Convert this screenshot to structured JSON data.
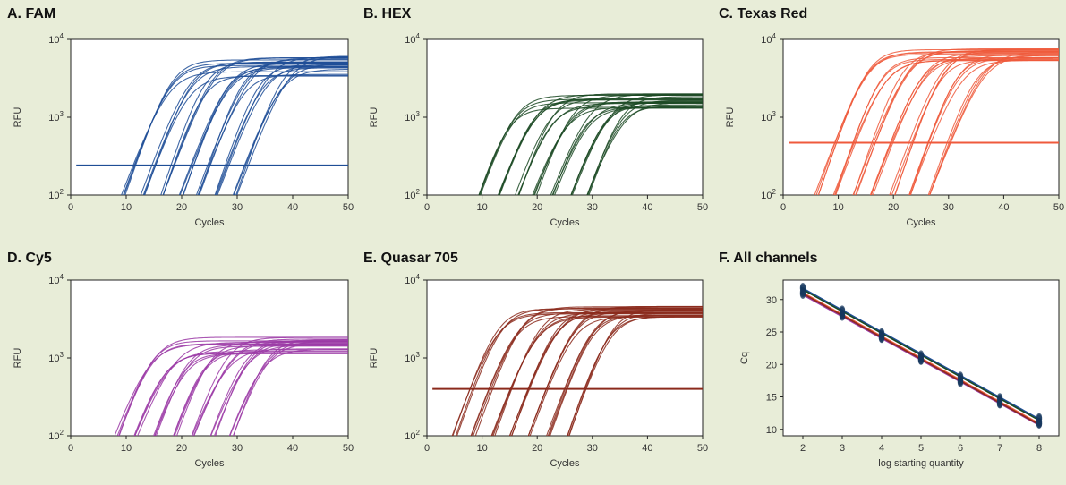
{
  "chart_data": [
    {
      "id": "A",
      "type": "line",
      "title": "A. FAM",
      "xlabel": "Cycles",
      "ylabel": "RFU",
      "xlim": [
        0,
        50
      ],
      "ylim": [
        100,
        10000
      ],
      "yscale": "log",
      "xticks": [
        "0",
        "10",
        "20",
        "30",
        "40",
        "50"
      ],
      "yticks": [
        {
          "base": "10",
          "exp": "2"
        },
        {
          "base": "10",
          "exp": "3"
        },
        {
          "base": "10",
          "exp": "4"
        }
      ],
      "color": "#1f4e96",
      "threshold": 240,
      "threshold_xrange": [
        1,
        50
      ],
      "plateau_range": [
        2800,
        6200
      ],
      "curves_per_group": 4,
      "series": [
        {
          "name": "",
          "cq": 11.5
        },
        {
          "name": "",
          "cq": 15.0
        },
        {
          "name": "",
          "cq": 18.4
        },
        {
          "name": "",
          "cq": 21.8
        },
        {
          "name": "",
          "cq": 25.0
        },
        {
          "name": "",
          "cq": 28.2
        },
        {
          "name": "",
          "cq": 31.6
        }
      ]
    },
    {
      "id": "B",
      "type": "line",
      "title": "B. HEX",
      "xlabel": "Cycles",
      "ylabel": "RFU",
      "xlim": [
        0,
        50
      ],
      "ylim": [
        100,
        10000
      ],
      "yscale": "log",
      "xticks": [
        "0",
        "10",
        "20",
        "30",
        "40",
        "50"
      ],
      "yticks": [
        {
          "base": "10",
          "exp": "2"
        },
        {
          "base": "10",
          "exp": "3"
        },
        {
          "base": "10",
          "exp": "4"
        }
      ],
      "color": "#1c4a24",
      "threshold": null,
      "plateau_range": [
        1150,
        2000
      ],
      "curves_per_group": 4,
      "series": [
        {
          "name": "",
          "cq": 12.0
        },
        {
          "name": "",
          "cq": 15.5
        },
        {
          "name": "",
          "cq": 19.0
        },
        {
          "name": "",
          "cq": 22.3
        },
        {
          "name": "",
          "cq": 25.6
        },
        {
          "name": "",
          "cq": 28.8
        },
        {
          "name": "",
          "cq": 32.0
        }
      ]
    },
    {
      "id": "C",
      "type": "line",
      "title": "C. Texas Red",
      "xlabel": "Cycles",
      "ylabel": "RFU",
      "xlim": [
        0,
        50
      ],
      "ylim": [
        100,
        10000
      ],
      "yscale": "log",
      "xticks": [
        "0",
        "10",
        "20",
        "30",
        "40",
        "50"
      ],
      "yticks": [
        {
          "base": "10",
          "exp": "2"
        },
        {
          "base": "10",
          "exp": "3"
        },
        {
          "base": "10",
          "exp": "4"
        }
      ],
      "color": "#ef5a3c",
      "threshold": 470,
      "threshold_xrange": [
        1,
        50
      ],
      "plateau_range": [
        4800,
        7600
      ],
      "curves_per_group": 4,
      "series": [
        {
          "name": "",
          "cq": 9.5
        },
        {
          "name": "",
          "cq": 13.0
        },
        {
          "name": "",
          "cq": 16.4
        },
        {
          "name": "",
          "cq": 19.8
        },
        {
          "name": "",
          "cq": 23.2
        },
        {
          "name": "",
          "cq": 26.5
        },
        {
          "name": "",
          "cq": 30.0
        }
      ]
    },
    {
      "id": "D",
      "type": "line",
      "title": "D. Cy5",
      "xlabel": "Cycles",
      "ylabel": "RFU",
      "xlim": [
        0,
        50
      ],
      "ylim": [
        100,
        10000
      ],
      "yscale": "log",
      "xticks": [
        "0",
        "10",
        "20",
        "30",
        "40",
        "50"
      ],
      "yticks": [
        {
          "base": "10",
          "exp": "2"
        },
        {
          "base": "10",
          "exp": "3"
        },
        {
          "base": "10",
          "exp": "4"
        }
      ],
      "color": "#9b3aa6",
      "threshold": null,
      "plateau_range": [
        900,
        1900
      ],
      "curves_per_group": 4,
      "series": [
        {
          "name": "",
          "cq": 11.0
        },
        {
          "name": "",
          "cq": 14.6
        },
        {
          "name": "",
          "cq": 18.0
        },
        {
          "name": "",
          "cq": 21.4
        },
        {
          "name": "",
          "cq": 24.8
        },
        {
          "name": "",
          "cq": 28.2
        },
        {
          "name": "",
          "cq": 31.6
        }
      ]
    },
    {
      "id": "E",
      "type": "line",
      "title": "E. Quasar 705",
      "xlabel": "Cycles",
      "ylabel": "RFU",
      "xlim": [
        0,
        50
      ],
      "ylim": [
        100,
        10000
      ],
      "yscale": "log",
      "xticks": [
        "0",
        "10",
        "20",
        "30",
        "40",
        "50"
      ],
      "yticks": [
        {
          "base": "10",
          "exp": "2"
        },
        {
          "base": "10",
          "exp": "3"
        },
        {
          "base": "10",
          "exp": "4"
        }
      ],
      "color": "#8b2a1c",
      "threshold": 400,
      "threshold_xrange": [
        1,
        50
      ],
      "plateau_range": [
        3000,
        4700
      ],
      "curves_per_group": 4,
      "series": [
        {
          "name": "",
          "cq": 8.2
        },
        {
          "name": "",
          "cq": 11.6
        },
        {
          "name": "",
          "cq": 15.0
        },
        {
          "name": "",
          "cq": 18.4
        },
        {
          "name": "",
          "cq": 21.8
        },
        {
          "name": "",
          "cq": 25.2
        },
        {
          "name": "",
          "cq": 28.6
        }
      ]
    },
    {
      "id": "F",
      "type": "scatter",
      "title": "F. All channels",
      "xlabel": "log starting quantity",
      "ylabel": "Cq",
      "xlim": [
        1.5,
        8.5
      ],
      "ylim": [
        9,
        33
      ],
      "xticks": [
        "2",
        "3",
        "4",
        "5",
        "6",
        "7",
        "8"
      ],
      "yticks": [
        "10",
        "15",
        "20",
        "25",
        "30"
      ],
      "x": [
        2,
        3,
        4,
        5,
        6,
        7,
        8
      ],
      "series": [
        {
          "name": "",
          "color": "#1f4e96",
          "values": [
            31.9,
            28.4,
            24.9,
            21.5,
            18.2,
            14.9,
            11.8
          ]
        },
        {
          "name": "",
          "color": "#1c4a24",
          "values": [
            31.7,
            28.2,
            24.7,
            21.3,
            18.0,
            14.7,
            11.6
          ]
        },
        {
          "name": "",
          "color": "#ef5a3c",
          "values": [
            31.2,
            27.7,
            24.3,
            20.9,
            17.5,
            14.2,
            11.1
          ]
        },
        {
          "name": "",
          "color": "#9b3aa6",
          "values": [
            30.8,
            27.4,
            24.0,
            20.6,
            17.2,
            13.9,
            10.8
          ]
        },
        {
          "name": "",
          "color": "#8b2a1c",
          "values": [
            31.0,
            27.6,
            24.1,
            20.7,
            17.4,
            14.0,
            10.9
          ]
        }
      ],
      "marker_color": "#16375e"
    }
  ]
}
